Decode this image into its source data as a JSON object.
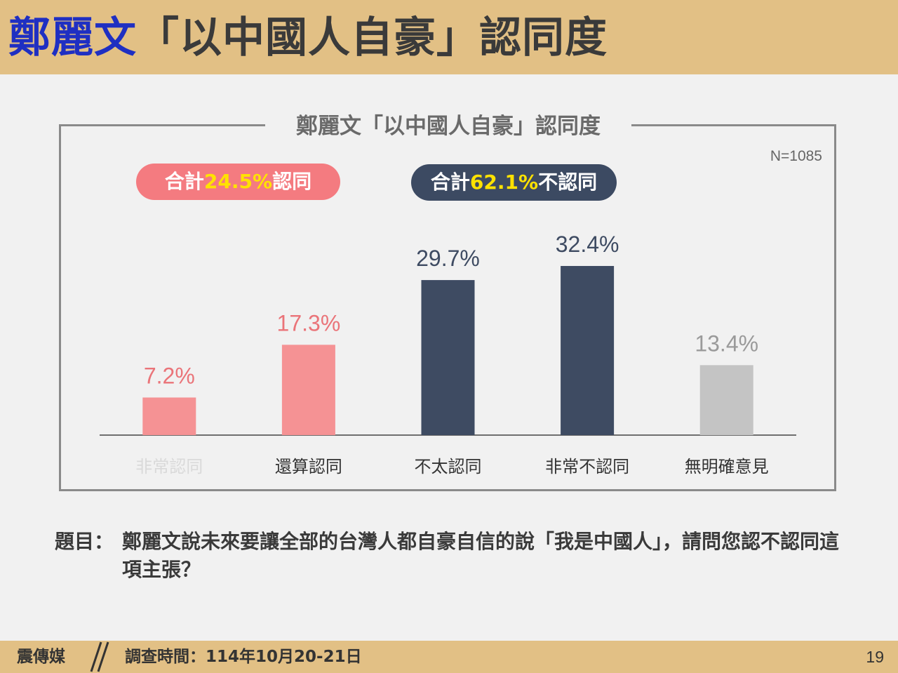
{
  "header": {
    "title_name": "鄭麗文",
    "title_rest": "「以中國人自豪」認同度"
  },
  "chart_data": {
    "type": "bar",
    "title": "鄭麗文「以中國人自豪」認同度",
    "sample_size": "N=1085",
    "categories": [
      "非常認同",
      "還算認同",
      "不太認同",
      "非常不認同",
      "無明確意見"
    ],
    "values": [
      7.2,
      17.3,
      29.7,
      32.4,
      13.4
    ],
    "value_labels": [
      "7.2%",
      "17.3%",
      "29.7%",
      "32.4%",
      "13.4%"
    ],
    "bar_colors": [
      "#f59294",
      "#f59294",
      "#3e4b62",
      "#3e4b62",
      "#c4c4c4"
    ],
    "label_colors": [
      "#ea7479",
      "#ea7479",
      "#3e4b62",
      "#3e4b62",
      "#9a9a9a"
    ],
    "ylim": [
      0,
      35
    ],
    "groups": [
      {
        "prefix": "合計",
        "percent": "24.5%",
        "suffix": "認同",
        "color": "#f47b80"
      },
      {
        "prefix": "合計",
        "percent": "62.1%",
        "suffix": "不認同",
        "color": "#3c4a62"
      }
    ]
  },
  "question": {
    "label": "題目：",
    "text": "鄭麗文說未來要讓全部的台灣人都自豪自信的說「我是中國人」，請問您認不認同這項主張？"
  },
  "footer": {
    "brand": "震傳媒",
    "survey_date": "調查時間：114年10月20-21日",
    "page_number": "19"
  }
}
